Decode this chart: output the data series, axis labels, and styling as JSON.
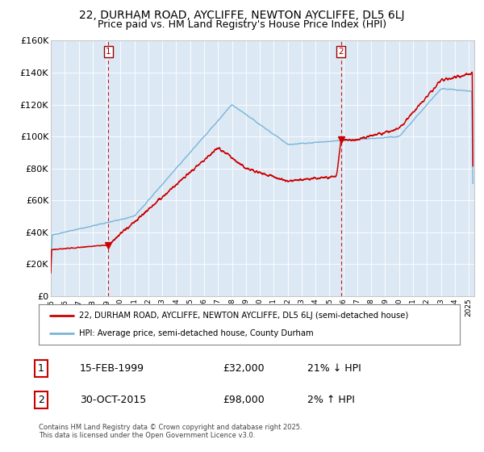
{
  "title": "22, DURHAM ROAD, AYCLIFFE, NEWTON AYCLIFFE, DL5 6LJ",
  "subtitle": "Price paid vs. HM Land Registry's House Price Index (HPI)",
  "bg_color": "#dce9f5",
  "plot_bg_color": "#dce9f5",
  "hpi_color": "#7ab4d8",
  "price_color": "#cc0000",
  "marker_color": "#cc0000",
  "dashed_color": "#cc0000",
  "ylim": [
    0,
    160000
  ],
  "yticks": [
    0,
    20000,
    40000,
    60000,
    80000,
    100000,
    120000,
    140000,
    160000
  ],
  "ytick_labels": [
    "£0",
    "£20K",
    "£40K",
    "£60K",
    "£80K",
    "£100K",
    "£120K",
    "£140K",
    "£160K"
  ],
  "x_start_year": 1995,
  "x_end_year": 2025,
  "sale1_year": 1999.12,
  "sale1_price": 32000,
  "sale2_year": 2015.83,
  "sale2_price": 98000,
  "legend_label1": "22, DURHAM ROAD, AYCLIFFE, NEWTON AYCLIFFE, DL5 6LJ (semi-detached house)",
  "legend_label2": "HPI: Average price, semi-detached house, County Durham",
  "table_row1": [
    "1",
    "15-FEB-1999",
    "£32,000",
    "21% ↓ HPI"
  ],
  "table_row2": [
    "2",
    "30-OCT-2015",
    "£98,000",
    "2% ↑ HPI"
  ],
  "footnote": "Contains HM Land Registry data © Crown copyright and database right 2025.\nThis data is licensed under the Open Government Licence v3.0.",
  "title_fontsize": 10,
  "subtitle_fontsize": 9,
  "axis_fontsize": 8
}
